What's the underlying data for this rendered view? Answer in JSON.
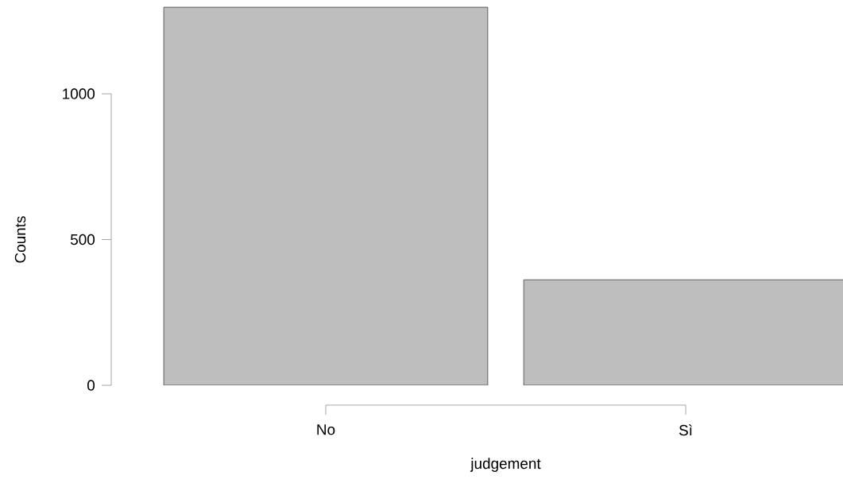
{
  "chart_data": {
    "type": "bar",
    "xlabel": "judgement",
    "ylabel": "Counts",
    "categories": [
      "No",
      "Sì"
    ],
    "values": [
      1297,
      362
    ],
    "color": "#bebebe",
    "ylim": [
      0,
      1300
    ],
    "yticks": [
      0,
      500,
      1000
    ]
  }
}
